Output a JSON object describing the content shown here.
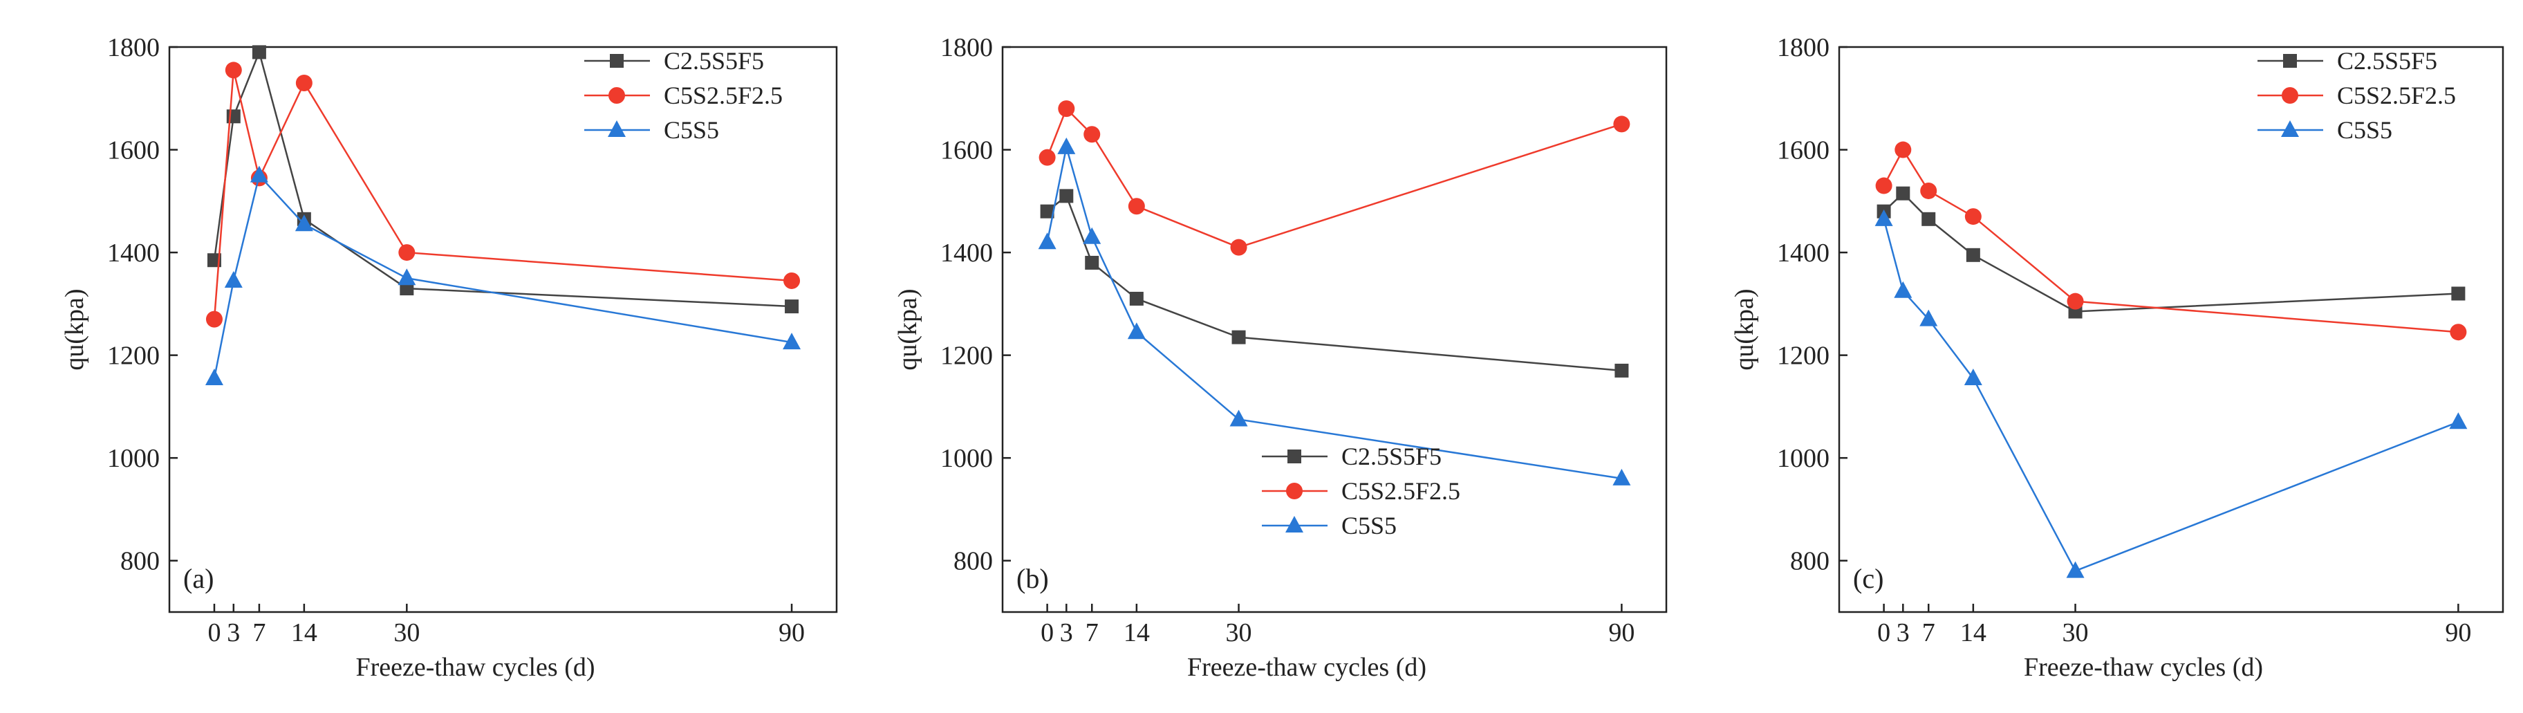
{
  "chart_data": [
    {
      "type": "line",
      "panel_label": "(a)",
      "xlabel": "Freeze-thaw cycles (d)",
      "ylabel": "qu(kpa)",
      "x_ticks": [
        0,
        3,
        7,
        14,
        30,
        90
      ],
      "y_ticks": [
        800,
        1000,
        1200,
        1400,
        1600,
        1800
      ],
      "xlim": [
        -7,
        97
      ],
      "ylim": [
        700,
        1800
      ],
      "legend_position": "top-right",
      "series": [
        {
          "name": "C2.5S5F5",
          "color": "#444444",
          "marker": "square",
          "x": [
            0,
            3,
            7,
            14,
            30,
            90
          ],
          "values": [
            1385,
            1665,
            1790,
            1465,
            1330,
            1295
          ]
        },
        {
          "name": "C5S2.5F2.5",
          "color": "#ef3b2c",
          "marker": "circle",
          "x": [
            0,
            3,
            7,
            14,
            30,
            90
          ],
          "values": [
            1270,
            1755,
            1545,
            1730,
            1400,
            1345
          ]
        },
        {
          "name": "C5S5",
          "color": "#2878d6",
          "marker": "triangle",
          "x": [
            0,
            3,
            7,
            14,
            30,
            90
          ],
          "values": [
            1155,
            1345,
            1550,
            1455,
            1350,
            1225
          ]
        }
      ]
    },
    {
      "type": "line",
      "panel_label": "(b)",
      "xlabel": "Freeze-thaw cycles (d)",
      "ylabel": "qu(kpa)",
      "x_ticks": [
        0,
        3,
        7,
        14,
        30,
        90
      ],
      "y_ticks": [
        800,
        1000,
        1200,
        1400,
        1600,
        1800
      ],
      "xlim": [
        -7,
        97
      ],
      "ylim": [
        700,
        1800
      ],
      "legend_position": "bottom-right",
      "series": [
        {
          "name": "C2.5S5F5",
          "color": "#444444",
          "marker": "square",
          "x": [
            0,
            3,
            7,
            14,
            30,
            90
          ],
          "values": [
            1480,
            1510,
            1380,
            1310,
            1235,
            1170
          ]
        },
        {
          "name": "C5S2.5F2.5",
          "color": "#ef3b2c",
          "marker": "circle",
          "x": [
            0,
            3,
            7,
            14,
            30,
            90
          ],
          "values": [
            1585,
            1680,
            1630,
            1490,
            1410,
            1650
          ]
        },
        {
          "name": "C5S5",
          "color": "#2878d6",
          "marker": "triangle",
          "x": [
            0,
            3,
            7,
            14,
            30,
            90
          ],
          "values": [
            1420,
            1605,
            1430,
            1245,
            1075,
            960
          ]
        }
      ]
    },
    {
      "type": "line",
      "panel_label": "(c)",
      "xlabel": "Freeze-thaw cycles (d)",
      "ylabel": "qu(kpa)",
      "x_ticks": [
        0,
        3,
        7,
        14,
        30,
        90
      ],
      "y_ticks": [
        800,
        1000,
        1200,
        1400,
        1600,
        1800
      ],
      "xlim": [
        -7,
        97
      ],
      "ylim": [
        700,
        1800
      ],
      "legend_position": "top-right",
      "series": [
        {
          "name": "C2.5S5F5",
          "color": "#444444",
          "marker": "square",
          "x": [
            0,
            3,
            7,
            14,
            30,
            90
          ],
          "values": [
            1480,
            1515,
            1465,
            1395,
            1285,
            1320
          ]
        },
        {
          "name": "C5S2.5F2.5",
          "color": "#ef3b2c",
          "marker": "circle",
          "x": [
            0,
            3,
            7,
            14,
            30,
            90
          ],
          "values": [
            1530,
            1600,
            1520,
            1470,
            1305,
            1245
          ]
        },
        {
          "name": "C5S5",
          "color": "#2878d6",
          "marker": "triangle",
          "x": [
            0,
            3,
            7,
            14,
            30,
            90
          ],
          "values": [
            1465,
            1325,
            1270,
            1155,
            780,
            1070
          ]
        }
      ]
    }
  ]
}
